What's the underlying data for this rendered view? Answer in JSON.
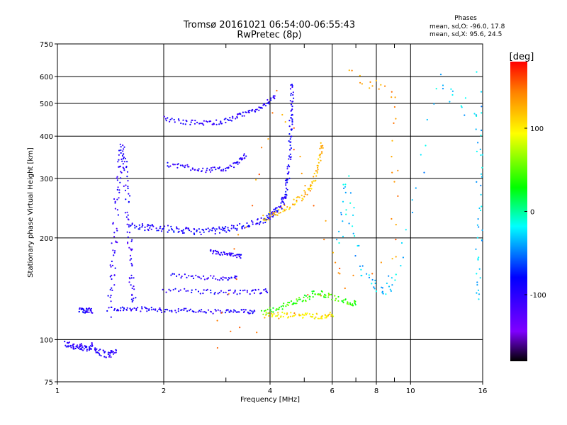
{
  "header": {
    "title_line1": "Tromsø 20161021 06:54:00-06:55:43",
    "title_line2": "RwPretec (8p)",
    "stats_title": "Phases",
    "stats_o": "mean, sd,O: -96.0, 17.8",
    "stats_x": "mean, sd,X:  95.6, 24.5"
  },
  "chart_data": {
    "type": "scatter",
    "xlabel": "Frequency [MHz]",
    "ylabel": "Stationary phase Virtual Height [km]",
    "x_scale": "log",
    "y_scale": "log",
    "xlim": [
      1,
      16
    ],
    "ylim": [
      75,
      750
    ],
    "x_ticks": [
      1,
      2,
      4,
      6,
      8,
      10,
      16
    ],
    "x_tick_labels": [
      "1",
      "2",
      "4",
      "6",
      "8",
      "10",
      "16"
    ],
    "x_minor_ticks": [
      3,
      5,
      7,
      9
    ],
    "y_ticks": [
      75,
      100,
      200,
      300,
      400,
      500,
      600,
      750
    ],
    "y_tick_labels": [
      "75",
      "100",
      "200",
      "300",
      "400",
      "500",
      "600",
      "750"
    ],
    "grid": true,
    "colorbar": {
      "label": "[deg]",
      "range": [
        -180,
        180
      ],
      "ticks": [
        100,
        0,
        -100
      ],
      "tick_labels": [
        "100",
        "0",
        "-100"
      ],
      "colormap": [
        "#000000",
        "#7f00ff",
        "#0000ff",
        "#00ffff",
        "#00ff00",
        "#ffff00",
        "#ff0000"
      ]
    },
    "traces": [
      {
        "name": "",
        "phase": -100,
        "spread": 0.025,
        "points": [
          [
            1.05,
            97
          ],
          [
            1.1,
            96
          ],
          [
            1.15,
            95
          ],
          [
            1.2,
            94
          ],
          [
            1.25,
            96
          ],
          [
            1.3,
            92
          ],
          [
            1.4,
            90
          ],
          [
            1.45,
            92
          ]
        ]
      },
      {
        "name": "",
        "phase": -95,
        "spread": 0.018,
        "points": [
          [
            1.15,
            123
          ],
          [
            1.2,
            122
          ],
          [
            1.25,
            122
          ]
        ]
      },
      {
        "name": "",
        "phase": -100,
        "spread": 0.035,
        "points": [
          [
            1.4,
            120
          ],
          [
            1.43,
            150
          ],
          [
            1.45,
            190
          ],
          [
            1.47,
            260
          ],
          [
            1.5,
            320
          ],
          [
            1.52,
            370
          ],
          [
            1.55,
            330
          ],
          [
            1.58,
            260
          ],
          [
            1.6,
            200
          ],
          [
            1.62,
            160
          ],
          [
            1.65,
            130
          ]
        ]
      },
      {
        "name": "",
        "phase": -95,
        "spread": 0.015,
        "points": [
          [
            1.45,
            123
          ],
          [
            1.6,
            123
          ],
          [
            1.8,
            123
          ],
          [
            2.0,
            122
          ],
          [
            2.3,
            122
          ],
          [
            2.6,
            121
          ],
          [
            3.0,
            121
          ],
          [
            3.3,
            121
          ],
          [
            3.6,
            121
          ]
        ]
      },
      {
        "name": "",
        "phase": -90,
        "spread": 0.022,
        "points": [
          [
            1.6,
            220
          ],
          [
            1.75,
            215
          ],
          [
            1.9,
            215
          ],
          [
            2.1,
            212
          ],
          [
            2.3,
            210
          ],
          [
            2.5,
            209
          ],
          [
            2.8,
            210
          ],
          [
            3.0,
            212
          ],
          [
            3.3,
            216
          ],
          [
            3.6,
            221
          ],
          [
            3.9,
            228
          ],
          [
            4.1,
            236
          ],
          [
            4.3,
            250
          ],
          [
            4.4,
            265
          ],
          [
            4.5,
            300
          ],
          [
            4.55,
            350
          ],
          [
            4.58,
            420
          ],
          [
            4.6,
            480
          ],
          [
            4.62,
            560
          ]
        ]
      },
      {
        "name": "",
        "phase": -100,
        "spread": 0.018,
        "points": [
          [
            2.05,
            330
          ],
          [
            2.3,
            325
          ],
          [
            2.6,
            318
          ],
          [
            2.9,
            318
          ],
          [
            3.2,
            330
          ],
          [
            3.4,
            350
          ]
        ]
      },
      {
        "name": "",
        "phase": -100,
        "spread": 0.016,
        "points": [
          [
            2.0,
            450
          ],
          [
            2.3,
            440
          ],
          [
            2.6,
            438
          ],
          [
            2.9,
            440
          ],
          [
            3.2,
            455
          ],
          [
            3.5,
            470
          ],
          [
            3.8,
            490
          ],
          [
            4.1,
            520
          ]
        ]
      },
      {
        "name": "",
        "phase": -100,
        "spread": 0.014,
        "points": [
          [
            2.7,
            182
          ],
          [
            2.9,
            180
          ],
          [
            3.1,
            178
          ],
          [
            3.3,
            176
          ]
        ]
      },
      {
        "name": "",
        "phase": -95,
        "spread": 0.016,
        "points": [
          [
            2.0,
            140
          ],
          [
            2.5,
            139
          ],
          [
            3.0,
            138
          ],
          [
            3.5,
            138
          ],
          [
            3.9,
            139
          ]
        ]
      },
      {
        "name": "",
        "phase": -100,
        "spread": 0.014,
        "points": [
          [
            2.1,
            155
          ],
          [
            2.5,
            153
          ],
          [
            2.9,
            152
          ],
          [
            3.2,
            152
          ]
        ]
      },
      {
        "name": "",
        "phase": 40,
        "spread": 0.02,
        "points": [
          [
            3.8,
            120
          ],
          [
            4.2,
            124
          ],
          [
            4.6,
            128
          ],
          [
            5.0,
            132
          ],
          [
            5.4,
            138
          ],
          [
            5.8,
            135
          ],
          [
            6.5,
            130
          ],
          [
            7.0,
            128
          ]
        ]
      },
      {
        "name": "",
        "phase": 100,
        "spread": 0.02,
        "points": [
          [
            3.9,
            118
          ],
          [
            4.3,
            118
          ],
          [
            4.8,
            118
          ],
          [
            5.2,
            118
          ],
          [
            5.6,
            117
          ],
          [
            6.0,
            118
          ]
        ]
      },
      {
        "name": "",
        "phase": 120,
        "spread": 0.022,
        "points": [
          [
            3.8,
            228
          ],
          [
            4.2,
            237
          ],
          [
            4.6,
            250
          ],
          [
            5.0,
            268
          ],
          [
            5.3,
            290
          ],
          [
            5.5,
            330
          ],
          [
            5.6,
            380
          ]
        ]
      },
      {
        "name": "",
        "phase": -30,
        "spread": 0.05,
        "points": [
          [
            6.3,
            200
          ],
          [
            6.6,
            300
          ],
          [
            7.2,
            160
          ],
          [
            8.2,
            140
          ],
          [
            9.1,
            150
          ],
          [
            12.0,
            580
          ],
          [
            15.7,
            450
          ],
          [
            15.7,
            200
          ],
          [
            15.7,
            130
          ],
          [
            15.7,
            600
          ]
        ]
      },
      {
        "name": "",
        "phase": 140,
        "spread": 0.05,
        "points": [
          [
            6.8,
            600
          ],
          [
            9.0,
            540
          ],
          [
            9.0,
            170
          ],
          [
            2.8,
            98
          ],
          [
            4.2,
            520
          ],
          [
            6.3,
            160
          ]
        ]
      }
    ]
  }
}
